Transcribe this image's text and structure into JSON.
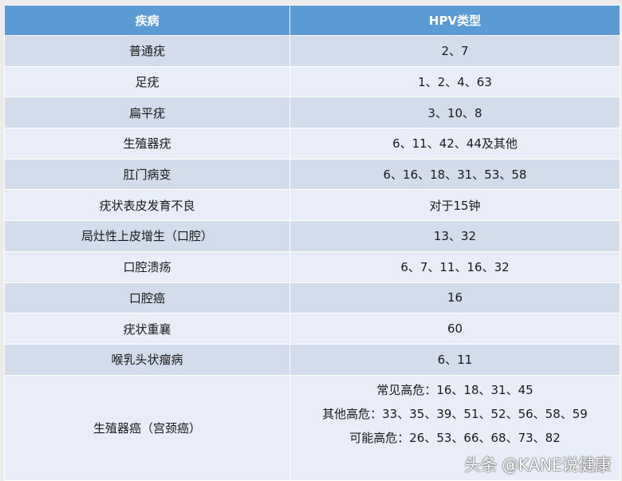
{
  "header": {
    "col1": "疾病",
    "col2": "HPV类型"
  },
  "rows": [
    {
      "disease": "普通疣",
      "types": "2、7"
    },
    {
      "disease": "足疣",
      "types": "1、2、4、63"
    },
    {
      "disease": "扁平疣",
      "types": "3、10、8"
    },
    {
      "disease": "生殖器疣",
      "types": "6、11、42、44及其他"
    },
    {
      "disease": "肛门病变",
      "types": "6、16、18、31、53、58"
    },
    {
      "disease": "疣状表皮发育不良",
      "types": "对于15钟"
    },
    {
      "disease": "局灶性上皮增生（口腔）",
      "types": "13、32"
    },
    {
      "disease": "口腔溃疡",
      "types": "6、7、11、16、32"
    },
    {
      "disease": "口腔癌",
      "types": "16"
    },
    {
      "disease": "疣状重襄",
      "types": "60"
    },
    {
      "disease": "喉乳头状瘤病",
      "types": "6、11"
    }
  ],
  "last_row": {
    "disease": "生殖器癌（宫颈癌）",
    "lines": [
      "常见高危：16、18、31、45",
      "其他高危：33、35、39、51、52、56、58、59",
      "可能高危：26、53、66、68、73、82"
    ]
  },
  "watermark": "头条 @KANE说健康"
}
